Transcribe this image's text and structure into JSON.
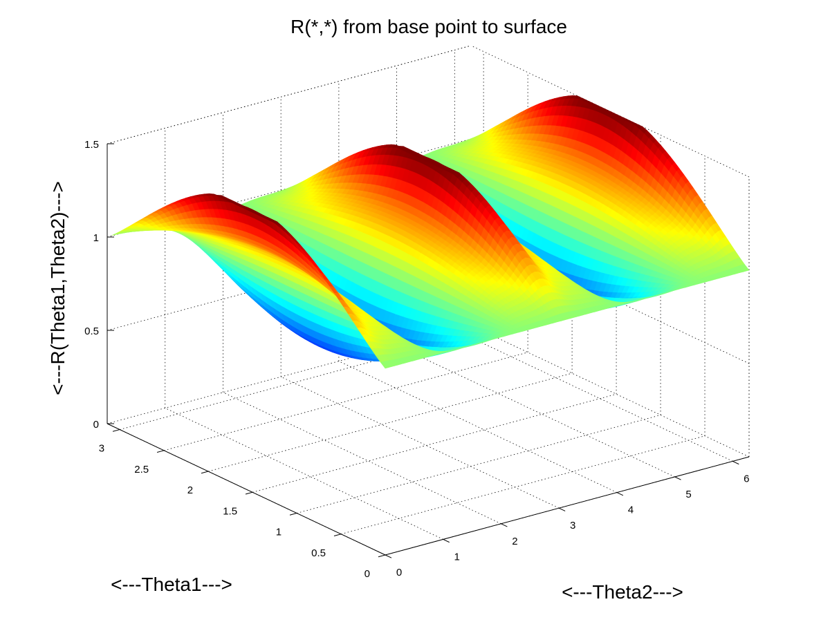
{
  "chart_data": {
    "type": "surface",
    "title": "R(*,*) from base point to surface",
    "xlabel": "<---Theta2--->",
    "ylabel": "<---Theta1--->",
    "zlabel": "<---R(Theta1,Theta2)--->",
    "xlim": [
      0,
      6.283
    ],
    "ylim": [
      0,
      3.1416
    ],
    "zlim": [
      0,
      1.5
    ],
    "x_ticks": [
      "0",
      "1",
      "2",
      "3",
      "4",
      "5",
      "6"
    ],
    "y_ticks": [
      "0",
      "0.5",
      "1",
      "1.5",
      "2",
      "2.5",
      "3"
    ],
    "z_ticks": [
      "0",
      "0.5",
      "1",
      "1.5"
    ],
    "grid": true,
    "colormap": "jet",
    "grid_resolution": {
      "theta1_samples": 60,
      "theta2_samples": 120
    },
    "surface": {
      "description_of_values": "R ranges from about 0.5 (valleys) to about 1.5 (sharp peaks); R = 1 along the Theta1 = 0 edge",
      "min": 0.5,
      "max": 1.5,
      "edge_value_theta1_zero": 1.0
    }
  }
}
